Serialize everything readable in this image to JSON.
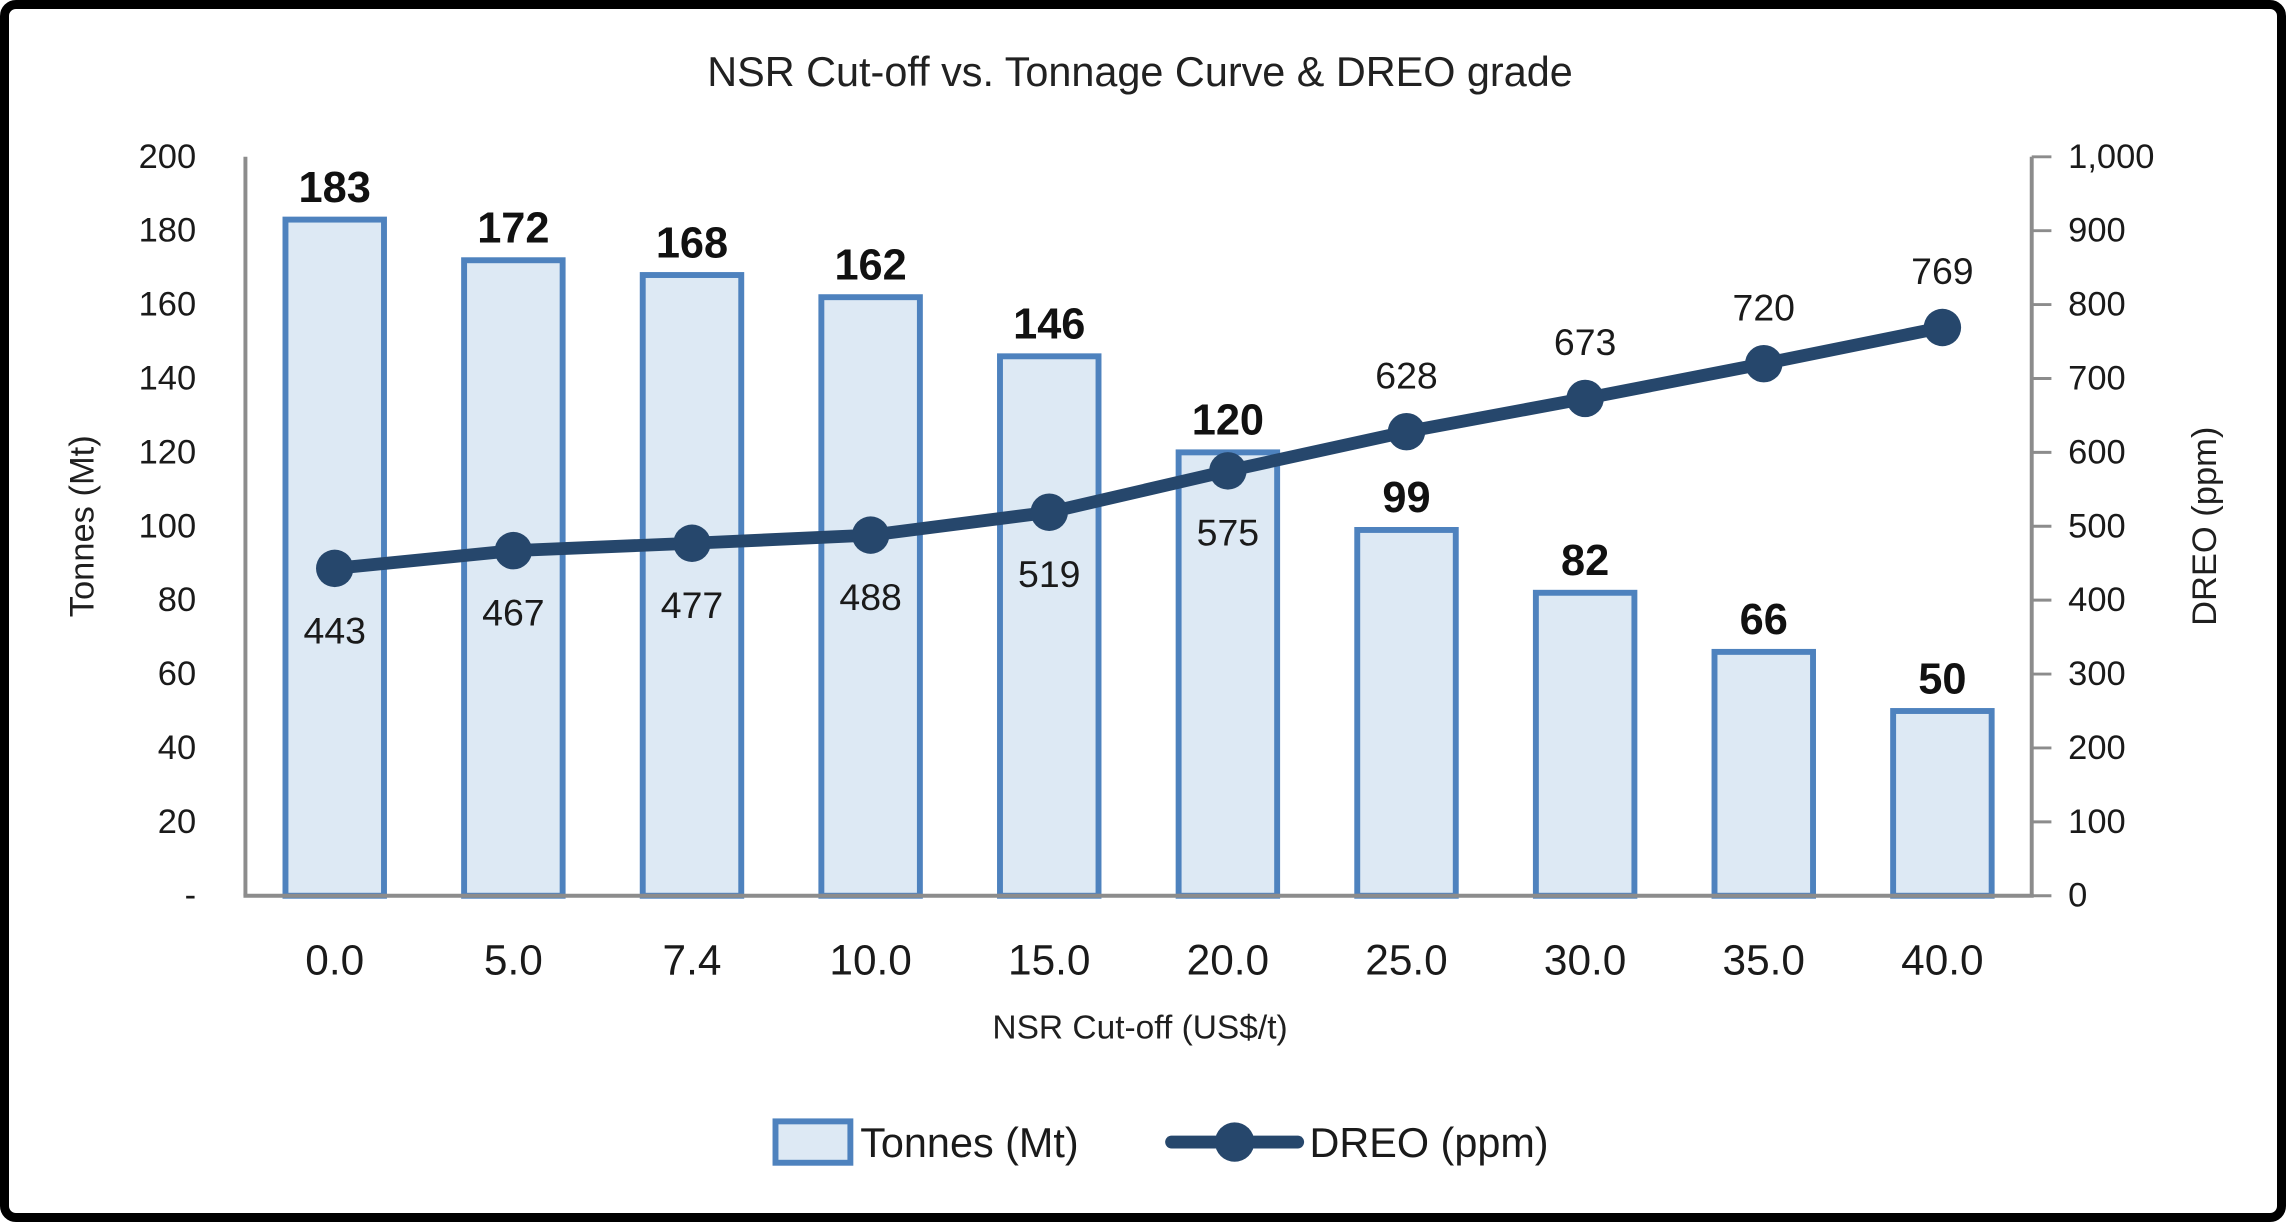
{
  "colors": {
    "bar_fill": "#DDE9F4",
    "bar_stroke": "#4E82BE",
    "line": "#26476C",
    "axis": "#8C8C8C",
    "text": "#1A1A1A"
  },
  "axes": {
    "left": {
      "title": "Tonnes (Mt)",
      "ticks": [
        "200",
        "180",
        "160",
        "140",
        "120",
        "100",
        "80",
        "60",
        "40",
        "20",
        "-"
      ]
    },
    "right": {
      "title": "DREO (ppm)",
      "ticks": [
        "1,000",
        "900",
        "800",
        "700",
        "600",
        "500",
        "400",
        "300",
        "200",
        "100",
        "0"
      ]
    },
    "x": {
      "title": "NSR Cut-off (US$/t)"
    }
  },
  "legend": [
    {
      "label": "Tonnes (Mt)",
      "type": "bar"
    },
    {
      "label": "DREO (ppm)",
      "type": "line"
    }
  ],
  "chart_data": {
    "type": "combo",
    "title": "NSR Cut-off vs. Tonnage Curve & DREO grade",
    "xlabel": "NSR Cut-off (US$/t)",
    "ylabel_left": "Tonnes (Mt)",
    "ylabel_right": "DREO (ppm)",
    "categories": [
      "0.0",
      "5.0",
      "7.4",
      "10.0",
      "15.0",
      "20.0",
      "25.0",
      "30.0",
      "35.0",
      "40.0"
    ],
    "series": [
      {
        "name": "Tonnes (Mt)",
        "type": "bar",
        "axis": "left",
        "values": [
          183,
          172,
          168,
          162,
          146,
          120,
          99,
          82,
          66,
          50
        ]
      },
      {
        "name": "DREO (ppm)",
        "type": "line",
        "axis": "right",
        "values": [
          443,
          467,
          477,
          488,
          519,
          575,
          628,
          673,
          720,
          769
        ],
        "label_position": [
          "below",
          "below",
          "below",
          "below",
          "below",
          "below",
          "above",
          "above",
          "above",
          "above"
        ]
      }
    ],
    "ylim_left": [
      0,
      200
    ],
    "ylim_right": [
      0,
      1000
    ],
    "ytick_step_left": 20,
    "ytick_step_right": 100,
    "grid": false,
    "legend_position": "bottom"
  }
}
